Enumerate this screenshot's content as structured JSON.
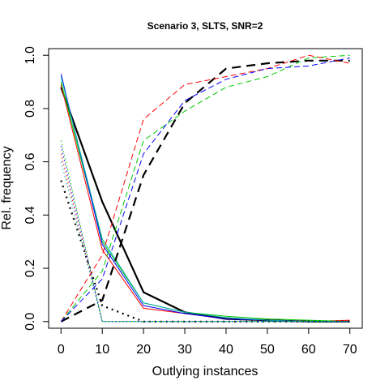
{
  "chart_data": {
    "type": "line",
    "title": "Scenario 3, SLTS, SNR=2",
    "xlabel": "Outlying instances",
    "ylabel": "Rel. frequency",
    "xlim": [
      -3,
      73
    ],
    "ylim": [
      -0.025,
      1.025
    ],
    "xticks": [
      0,
      10,
      20,
      30,
      40,
      50,
      60,
      70
    ],
    "yticks": [
      0.0,
      0.2,
      0.4,
      0.6,
      0.8,
      1.0
    ],
    "xtick_labels": [
      "0",
      "10",
      "20",
      "30",
      "40",
      "50",
      "60",
      "70"
    ],
    "ytick_labels": [
      "0.0",
      "0.2",
      "0.4",
      "0.6",
      "0.8",
      "1.0"
    ],
    "grid": false,
    "legend": "none",
    "x": [
      0,
      10,
      20,
      30,
      40,
      50,
      60,
      70
    ],
    "series": [
      {
        "color": "#000000",
        "style": "solid",
        "width": 2.2,
        "values": [
          0.88,
          0.45,
          0.11,
          0.035,
          0.01,
          0.005,
          0.0,
          0.0
        ]
      },
      {
        "color": "#ff0000",
        "style": "solid",
        "width": 1,
        "values": [
          0.89,
          0.27,
          0.05,
          0.03,
          0.01,
          0.005,
          0.0,
          0.005
        ]
      },
      {
        "color": "#00cc00",
        "style": "solid",
        "width": 1,
        "values": [
          0.9,
          0.3,
          0.07,
          0.035,
          0.02,
          0.01,
          0.005,
          0.0
        ]
      },
      {
        "color": "#0000ff",
        "style": "solid",
        "width": 1,
        "values": [
          0.93,
          0.29,
          0.06,
          0.03,
          0.01,
          0.005,
          0.0,
          0.0
        ]
      },
      {
        "color": "#00aaaa",
        "style": "solid",
        "width": 1,
        "values": [
          0.92,
          0.31,
          0.07,
          0.035,
          0.015,
          0.005,
          0.0,
          0.0
        ]
      },
      {
        "color": "#000000",
        "style": "dotted",
        "width": 2.2,
        "values": [
          0.53,
          0.06,
          0.0,
          0.0,
          0.0,
          0.0,
          0.0,
          0.0
        ]
      },
      {
        "color": "#ff0000",
        "style": "dotted",
        "width": 1,
        "values": [
          0.63,
          0.0,
          0.0,
          0.0,
          0.0,
          0.0,
          0.0,
          0.0
        ]
      },
      {
        "color": "#00cc00",
        "style": "dotted",
        "width": 1,
        "values": [
          0.68,
          0.0,
          0.0,
          0.0,
          0.0,
          0.0,
          0.0,
          0.0
        ]
      },
      {
        "color": "#0000ff",
        "style": "dotted",
        "width": 1,
        "values": [
          0.66,
          0.0,
          0.0,
          0.0,
          0.0,
          0.0,
          0.0,
          0.0
        ]
      },
      {
        "color": "#00aaaa",
        "style": "dotted",
        "width": 1,
        "values": [
          0.6,
          0.0,
          0.0,
          0.0,
          0.0,
          0.0,
          0.0,
          0.0
        ]
      },
      {
        "color": "#000000",
        "style": "dashed",
        "width": 2.2,
        "values": [
          0.0,
          0.08,
          0.55,
          0.82,
          0.95,
          0.97,
          0.98,
          0.98
        ]
      },
      {
        "color": "#ff0000",
        "style": "dashed",
        "width": 1,
        "values": [
          0.0,
          0.25,
          0.76,
          0.89,
          0.92,
          0.95,
          1.0,
          0.97
        ]
      },
      {
        "color": "#00cc00",
        "style": "dashed",
        "width": 1,
        "values": [
          0.0,
          0.19,
          0.68,
          0.79,
          0.88,
          0.92,
          0.99,
          1.0
        ]
      },
      {
        "color": "#0000ff",
        "style": "dashed",
        "width": 1,
        "values": [
          0.0,
          0.16,
          0.63,
          0.83,
          0.91,
          0.95,
          0.96,
          0.99
        ]
      }
    ]
  }
}
